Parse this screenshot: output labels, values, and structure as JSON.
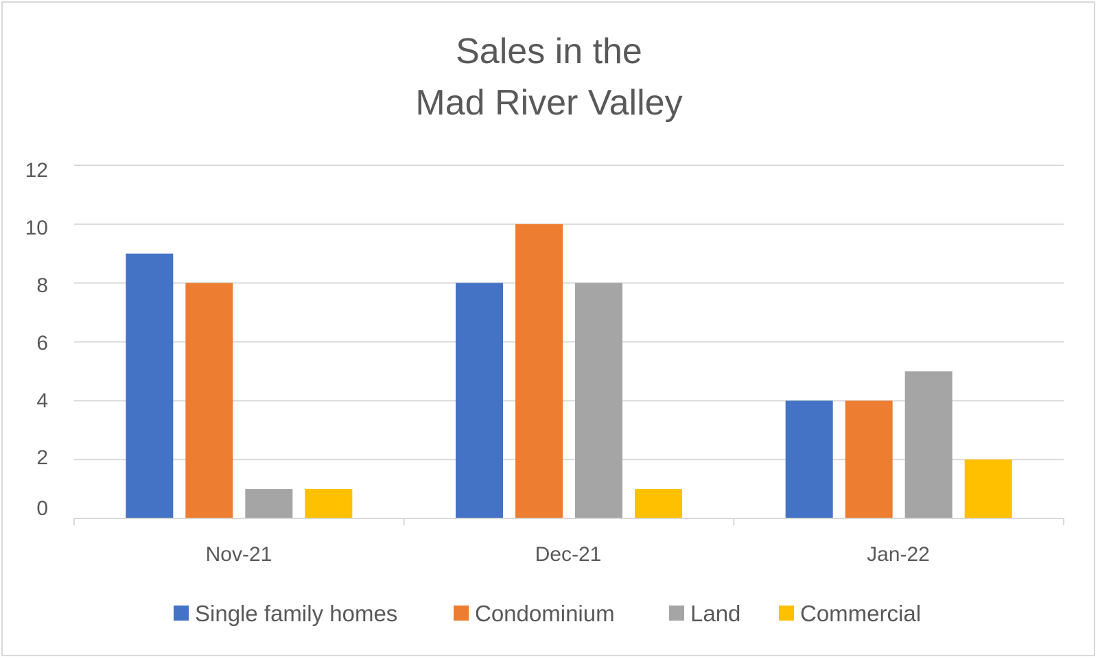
{
  "chart_data": {
    "type": "bar",
    "title_lines": [
      "Sales in the",
      "Mad River Valley"
    ],
    "categories": [
      "Nov-21",
      "Dec-21",
      "Jan-22"
    ],
    "series": [
      {
        "name": "Single family homes",
        "color": "#4472c4",
        "values": [
          9,
          8,
          4
        ]
      },
      {
        "name": "Condominium",
        "color": "#ed7d31",
        "values": [
          8,
          10,
          4
        ]
      },
      {
        "name": "Land",
        "color": "#a5a5a5",
        "values": [
          1,
          8,
          5
        ]
      },
      {
        "name": "Commercial",
        "color": "#ffc000",
        "values": [
          1,
          1,
          2
        ]
      }
    ],
    "y_ticks": [
      "0",
      "2",
      "4",
      "6",
      "8",
      "10",
      "12"
    ],
    "ylim": [
      0,
      12
    ],
    "grid": true,
    "legend_position": "bottom",
    "colors": {
      "grid": "#d9d9d9",
      "text": "#595959",
      "border": "#d9d9d9"
    }
  }
}
